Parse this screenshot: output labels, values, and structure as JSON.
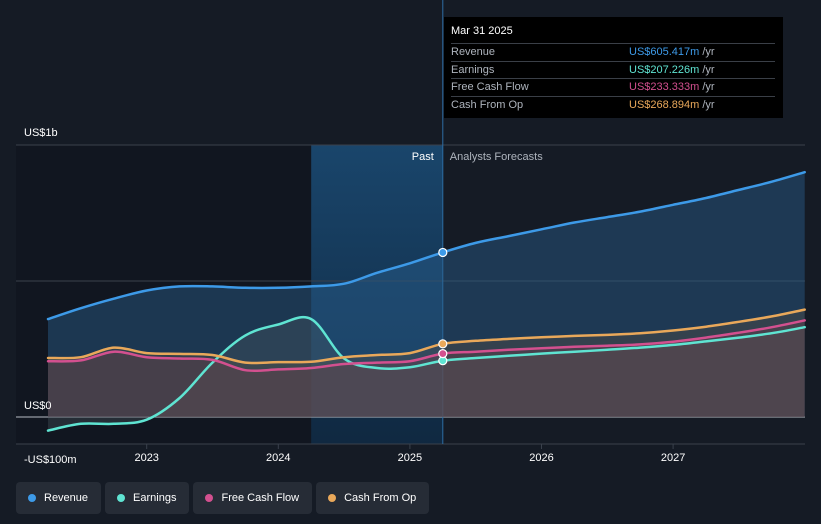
{
  "tooltip": {
    "date": "Mar 31 2025",
    "rows": [
      {
        "name": "Revenue",
        "value": "US$605.417m",
        "unit": "/yr",
        "color": "#3d9ae8"
      },
      {
        "name": "Earnings",
        "value": "US$207.226m",
        "unit": "/yr",
        "color": "#5fe4d2"
      },
      {
        "name": "Free Cash Flow",
        "value": "US$233.333m",
        "unit": "/yr",
        "color": "#d3508f"
      },
      {
        "name": "Cash From Op",
        "value": "US$268.894m",
        "unit": "/yr",
        "color": "#e9a85a"
      }
    ]
  },
  "sections": {
    "past": "Past",
    "forecast": "Analysts Forecasts"
  },
  "legend": [
    {
      "label": "Revenue",
      "color": "#3d9ae8"
    },
    {
      "label": "Earnings",
      "color": "#5fe4d2"
    },
    {
      "label": "Free Cash Flow",
      "color": "#d3508f"
    },
    {
      "label": "Cash From Op",
      "color": "#e9a85a"
    }
  ],
  "chart_data": {
    "type": "line",
    "y_unit": "US$m",
    "ylim": [
      -100,
      1000
    ],
    "y_labels": [
      {
        "value": 1000,
        "label": "US$1b"
      },
      {
        "value": 0,
        "label": "US$0"
      },
      {
        "value": -100,
        "label": "-US$100m"
      }
    ],
    "xlim": [
      2022.25,
      2028.0
    ],
    "x_ticks": [
      2023,
      2024,
      2025,
      2026,
      2027
    ],
    "past_end": 2025.25,
    "highlight_start": 2024.25,
    "grid": true,
    "legend_position": "bottom",
    "series": [
      {
        "name": "Revenue",
        "color": "#3d9ae8",
        "points": [
          [
            2022.25,
            360
          ],
          [
            2022.5,
            400
          ],
          [
            2022.75,
            435
          ],
          [
            2023.0,
            465
          ],
          [
            2023.25,
            480
          ],
          [
            2023.5,
            480
          ],
          [
            2023.75,
            475
          ],
          [
            2024.0,
            475
          ],
          [
            2024.25,
            480
          ],
          [
            2024.5,
            490
          ],
          [
            2024.75,
            530
          ],
          [
            2025.0,
            565
          ],
          [
            2025.25,
            605
          ],
          [
            2025.5,
            640
          ],
          [
            2025.75,
            665
          ],
          [
            2026.0,
            690
          ],
          [
            2026.25,
            715
          ],
          [
            2026.5,
            735
          ],
          [
            2026.75,
            755
          ],
          [
            2027.0,
            780
          ],
          [
            2027.25,
            805
          ],
          [
            2027.5,
            835
          ],
          [
            2027.75,
            865
          ],
          [
            2028.0,
            900
          ]
        ]
      },
      {
        "name": "Earnings",
        "color": "#5fe4d2",
        "points": [
          [
            2022.25,
            -50
          ],
          [
            2022.5,
            -25
          ],
          [
            2022.75,
            -25
          ],
          [
            2023.0,
            -10
          ],
          [
            2023.25,
            70
          ],
          [
            2023.5,
            200
          ],
          [
            2023.75,
            300
          ],
          [
            2024.0,
            340
          ],
          [
            2024.25,
            360
          ],
          [
            2024.5,
            215
          ],
          [
            2024.75,
            180
          ],
          [
            2025.0,
            183
          ],
          [
            2025.25,
            207
          ],
          [
            2025.5,
            217
          ],
          [
            2025.75,
            225
          ],
          [
            2026.0,
            233
          ],
          [
            2026.25,
            240
          ],
          [
            2026.5,
            247
          ],
          [
            2026.75,
            255
          ],
          [
            2027.0,
            265
          ],
          [
            2027.25,
            278
          ],
          [
            2027.5,
            292
          ],
          [
            2027.75,
            308
          ],
          [
            2028.0,
            330
          ]
        ]
      },
      {
        "name": "Free Cash Flow",
        "color": "#d3508f",
        "points": [
          [
            2022.25,
            205
          ],
          [
            2022.5,
            208
          ],
          [
            2022.75,
            240
          ],
          [
            2023.0,
            220
          ],
          [
            2023.25,
            215
          ],
          [
            2023.5,
            210
          ],
          [
            2023.75,
            172
          ],
          [
            2024.0,
            175
          ],
          [
            2024.25,
            180
          ],
          [
            2024.5,
            195
          ],
          [
            2024.75,
            200
          ],
          [
            2025.0,
            205
          ],
          [
            2025.25,
            233
          ],
          [
            2025.5,
            240
          ],
          [
            2025.75,
            247
          ],
          [
            2026.0,
            253
          ],
          [
            2026.25,
            258
          ],
          [
            2026.5,
            262
          ],
          [
            2026.75,
            267
          ],
          [
            2027.0,
            277
          ],
          [
            2027.25,
            292
          ],
          [
            2027.5,
            310
          ],
          [
            2027.75,
            330
          ],
          [
            2028.0,
            355
          ]
        ]
      },
      {
        "name": "Cash From Op",
        "color": "#e9a85a",
        "points": [
          [
            2022.25,
            217
          ],
          [
            2022.5,
            220
          ],
          [
            2022.75,
            255
          ],
          [
            2023.0,
            235
          ],
          [
            2023.25,
            232
          ],
          [
            2023.5,
            228
          ],
          [
            2023.75,
            200
          ],
          [
            2024.0,
            202
          ],
          [
            2024.25,
            203
          ],
          [
            2024.5,
            220
          ],
          [
            2024.75,
            228
          ],
          [
            2025.0,
            235
          ],
          [
            2025.25,
            269
          ],
          [
            2025.5,
            280
          ],
          [
            2025.75,
            287
          ],
          [
            2026.0,
            293
          ],
          [
            2026.25,
            298
          ],
          [
            2026.5,
            302
          ],
          [
            2026.75,
            308
          ],
          [
            2027.0,
            318
          ],
          [
            2027.25,
            332
          ],
          [
            2027.5,
            350
          ],
          [
            2027.75,
            370
          ],
          [
            2028.0,
            395
          ]
        ]
      }
    ]
  }
}
